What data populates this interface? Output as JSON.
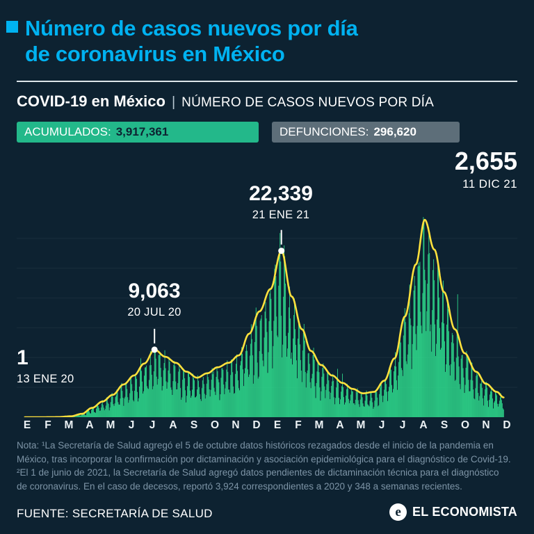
{
  "page_title": {
    "line1": "Número de casos nuevos por día",
    "line2": "de coronavirus en México"
  },
  "strap": {
    "bold": "COVID-19 en México",
    "separator": "|",
    "regular": "NÚMERO DE CASOS NUEVOS POR DÍA"
  },
  "badges": {
    "accumulated": {
      "label": "ACUMULADOS:",
      "value": "3,917,361"
    },
    "deaths": {
      "label": "DEFUNCIONES:",
      "value": "296,620"
    }
  },
  "chart_data": {
    "type": "bar",
    "title": "COVID-19 en México | Número de casos nuevos por día",
    "months": [
      "E",
      "F",
      "M",
      "A",
      "M",
      "J",
      "J",
      "A",
      "S",
      "O",
      "N",
      "D",
      "E",
      "F",
      "M",
      "A",
      "M",
      "J",
      "J",
      "A",
      "S",
      "O",
      "N",
      "D"
    ],
    "date_range": [
      "2020-01-01",
      "2021-12-31"
    ],
    "data_start": "2020-01-13",
    "data_end": "2021-12-11",
    "ylim": [
      0,
      28000
    ],
    "grid_step": 4000,
    "bar_color": "#2fdf8f",
    "line_color": "#ffe13d",
    "series": [
      {
        "name": "Casos nuevos confirmados por día (barras)",
        "type": "bar"
      },
      {
        "name": "Tendencia suavizada (línea)",
        "type": "line",
        "anchors": [
          [
            "2020-01-13",
            1
          ],
          [
            "2020-02-10",
            4
          ],
          [
            "2020-03-01",
            15
          ],
          [
            "2020-03-20",
            120
          ],
          [
            "2020-04-05",
            450
          ],
          [
            "2020-04-20",
            1250
          ],
          [
            "2020-05-05",
            2100
          ],
          [
            "2020-05-20",
            3000
          ],
          [
            "2020-06-05",
            4400
          ],
          [
            "2020-06-20",
            5600
          ],
          [
            "2020-07-05",
            7200
          ],
          [
            "2020-07-20",
            9063
          ],
          [
            "2020-08-05",
            8100
          ],
          [
            "2020-08-20",
            7300
          ],
          [
            "2020-09-05",
            6100
          ],
          [
            "2020-09-20",
            5300
          ],
          [
            "2020-10-05",
            5900
          ],
          [
            "2020-10-20",
            6700
          ],
          [
            "2020-11-05",
            7300
          ],
          [
            "2020-11-20",
            8300
          ],
          [
            "2020-12-05",
            11200
          ],
          [
            "2020-12-20",
            14200
          ],
          [
            "2021-01-05",
            17200
          ],
          [
            "2021-01-21",
            22339
          ],
          [
            "2021-02-05",
            16200
          ],
          [
            "2021-02-20",
            11800
          ],
          [
            "2021-03-05",
            8900
          ],
          [
            "2021-03-20",
            7000
          ],
          [
            "2021-04-05",
            5600
          ],
          [
            "2021-04-20",
            4600
          ],
          [
            "2021-05-05",
            3800
          ],
          [
            "2021-05-20",
            3200
          ],
          [
            "2021-06-05",
            3400
          ],
          [
            "2021-06-20",
            4900
          ],
          [
            "2021-07-05",
            7900
          ],
          [
            "2021-07-20",
            13500
          ],
          [
            "2021-08-05",
            20500
          ],
          [
            "2021-08-18",
            26500
          ],
          [
            "2021-09-01",
            22500
          ],
          [
            "2021-09-15",
            16800
          ],
          [
            "2021-10-01",
            11800
          ],
          [
            "2021-10-15",
            8600
          ],
          [
            "2021-11-01",
            6100
          ],
          [
            "2021-11-15",
            4500
          ],
          [
            "2021-12-01",
            3400
          ],
          [
            "2021-12-11",
            2655
          ]
        ]
      }
    ],
    "key_points": [
      {
        "label": "1",
        "date": "13 ENE 20",
        "date_iso": "2020-01-13",
        "value": 1,
        "dot": false
      },
      {
        "label": "9,063",
        "date": "20 JUL 20",
        "date_iso": "2020-07-20",
        "value": 9063,
        "dot": true
      },
      {
        "label": "22,339",
        "date": "21 ENE 21",
        "date_iso": "2021-01-21",
        "value": 22339,
        "dot": true
      },
      {
        "label": "2,655",
        "date": "11 DIC 21",
        "date_iso": "2021-12-11",
        "value": 2655,
        "dot": false
      }
    ],
    "outliers": [
      {
        "date": "2021-10-05",
        "value": 16500
      }
    ]
  },
  "note": {
    "lines": [
      "Nota: ¹La Secretaría de Salud agregó el 5 de octubre datos históricos rezagados desde el inicio de la pandemia en",
      "México, tras incorporar la confirmación por dictaminación y asociación epidemiológica para el diagnóstico de Covid-19.",
      "²El 1 de junio de 2021, la Secretaría de Salud agregó datos pendientes de dictaminación técnica para el diagnóstico",
      "de coronavirus. En el caso de decesos, reportó 3,924 correspondientes a 2020 y 348 a semanas recientes."
    ]
  },
  "footer": {
    "source": "FUENTE: SECRETARÍA DE SALUD",
    "brand": "EL ECONOMISTA",
    "brand_initial": "e"
  },
  "colors": {
    "background": "#0d2231",
    "accent_cyan": "#00b2f1",
    "badge_green": "#23b88a",
    "badge_gray": "#5d6e79",
    "bar_green": "#2fdf8f",
    "line_yellow": "#ffe13d",
    "note_gray": "#7d94a6"
  }
}
